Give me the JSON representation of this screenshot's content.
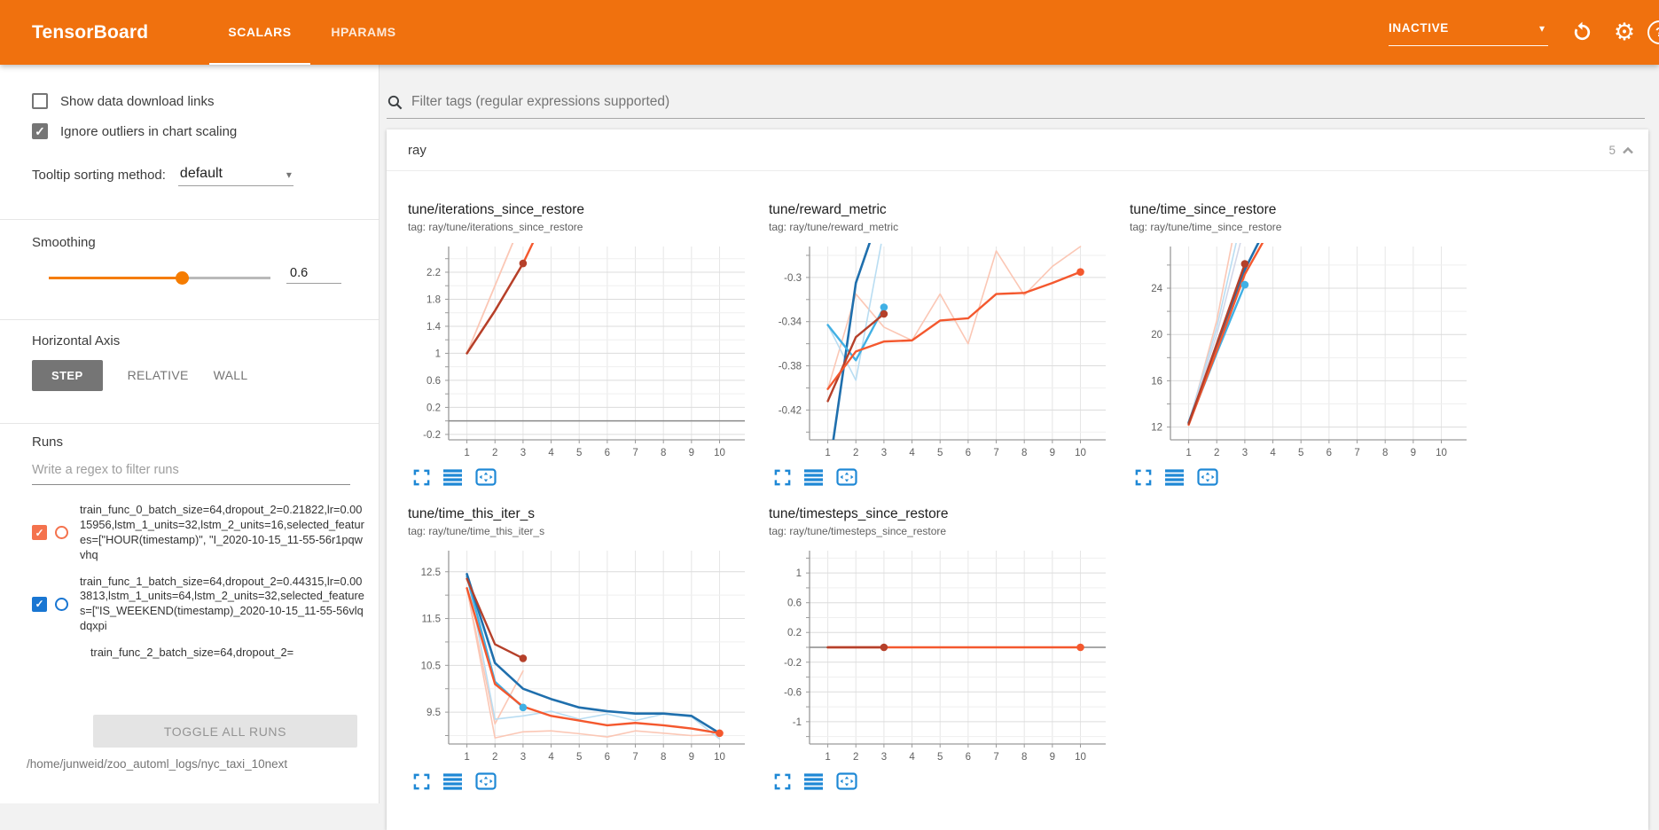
{
  "header": {
    "logo": "TensorBoard",
    "tabs": [
      {
        "label": "SCALARS",
        "active": true
      },
      {
        "label": "HPARAMS",
        "active": false
      }
    ],
    "status": {
      "label": "INACTIVE"
    }
  },
  "icons": {
    "caret_glyph": "▾",
    "gear_glyph": "⚙",
    "help_glyph": "?",
    "check_glyph": "✓",
    "search": "magnifier",
    "refresh": "circular-arrow",
    "settings": "gear",
    "collapse": "chevron-up",
    "expand_chart": "fullscreen-corners",
    "runs_selector": "horizontal-bars",
    "fit_domain": "boxed-arrows"
  },
  "colors": {
    "header_bar": "#f0710e",
    "accent_orange": "#f57c00",
    "run0_orange": "#f4724d",
    "run1_blue": "#1976d2",
    "chart_orange": "#f4582e",
    "chart_darkred": "#b5402a",
    "chart_blue": "#1f6fad",
    "chart_cyan": "#41b0e4",
    "icon_blue": "#1e88d5"
  },
  "sidebar": {
    "checkboxes": [
      {
        "label": "Show data download links",
        "checked": false
      },
      {
        "label": "Ignore outliers in chart scaling",
        "checked": true
      }
    ],
    "tooltip_sorting": {
      "label": "Tooltip sorting method:",
      "value": "default"
    },
    "smoothing": {
      "label": "Smoothing",
      "value": "0.6",
      "fraction": 0.6
    },
    "horizontal_axis": {
      "label": "Horizontal Axis",
      "options": [
        "STEP",
        "RELATIVE",
        "WALL"
      ],
      "active": "STEP"
    },
    "runs": {
      "label": "Runs",
      "filter_placeholder": "Write a regex to filter runs",
      "items": [
        {
          "name": "train_func_0_batch_size=64,dropout_2=0.21822,lr=0.0015956,lstm_1_units=32,lstm_2_units=16,selected_features=[\"HOUR(timestamp)\", \"I_2020-10-15_11-55-56r1pqwvhq",
          "checked": true,
          "color": "#f4724d",
          "partial": false
        },
        {
          "name": "train_func_1_batch_size=64,dropout_2=0.44315,lr=0.003813,lstm_1_units=64,lstm_2_units=32,selected_features=[\"IS_WEEKEND(timestamp)_2020-10-15_11-55-56vlqdqxpi",
          "checked": true,
          "color": "#1976d2",
          "partial": false
        },
        {
          "name": "train_func_2_batch_size=64,dropout_2=",
          "checked": true,
          "color": "#b5402a",
          "partial": true
        }
      ],
      "toggle_button": "TOGGLE ALL RUNS",
      "log_path": "/home/junweid/zoo_automl_logs/nyc_taxi_10next"
    }
  },
  "main": {
    "filter_placeholder": "Filter tags (regular expressions supported)",
    "section": {
      "name": "ray",
      "count": "5"
    }
  },
  "chart_data": {
    "note": "see charts array",
    "type": "line"
  },
  "charts": [
    {
      "title": "tune/iterations_since_restore",
      "tag": "tag: ray/tune/iterations_since_restore",
      "ylim": [
        -0.28,
        2.58
      ],
      "yticks": [
        2.2,
        1.8,
        1.4,
        1,
        0.6,
        0.2,
        -0.2
      ],
      "xticks": [
        1,
        2,
        3,
        4,
        5,
        6,
        7,
        8,
        9,
        10
      ],
      "zero": true,
      "series": [
        {
          "c": "#fbc7b5",
          "w": 1.8,
          "p": [
            [
              1,
              1
            ],
            [
              2,
              2
            ],
            [
              3,
              3
            ]
          ]
        },
        {
          "c": "#f4582e",
          "w": 2.4,
          "p": [
            [
              1,
              1
            ],
            [
              2,
              1.63
            ],
            [
              3,
              2.33
            ],
            [
              4,
              3.2
            ]
          ]
        },
        {
          "c": "#b5402a",
          "w": 2.4,
          "p": [
            [
              1,
              1
            ],
            [
              2,
              1.63
            ],
            [
              3,
              2.33
            ]
          ],
          "d": [
            3,
            2.33
          ]
        }
      ]
    },
    {
      "title": "tune/reward_metric",
      "tag": "tag: ray/tune/reward_metric",
      "ylim": [
        -0.447,
        -0.272
      ],
      "yticks": [
        -0.3,
        -0.34,
        -0.38,
        -0.42
      ],
      "xticks": [
        1,
        2,
        3,
        4,
        5,
        6,
        7,
        8,
        9,
        10
      ],
      "zero": false,
      "series": [
        {
          "c": "#fbc7b5",
          "w": 1.6,
          "p": [
            [
              1,
              -0.401
            ],
            [
              2,
              -0.315
            ],
            [
              3,
              -0.345
            ],
            [
              4,
              -0.357
            ],
            [
              5,
              -0.315
            ],
            [
              6,
              -0.36
            ],
            [
              7,
              -0.276
            ],
            [
              8,
              -0.316
            ],
            [
              9,
              -0.29
            ],
            [
              10,
              -0.272
            ]
          ]
        },
        {
          "c": "#b9ddf2",
          "w": 1.6,
          "p": [
            [
              1,
              -0.343
            ],
            [
              2,
              -0.393
            ],
            [
              2.9,
              -0.27
            ]
          ]
        },
        {
          "c": "#1f6fad",
          "w": 2.6,
          "p": [
            [
              1.18,
              -0.45
            ],
            [
              2,
              -0.305
            ],
            [
              2.5,
              -0.268
            ]
          ]
        },
        {
          "c": "#41b0e4",
          "w": 2.4,
          "p": [
            [
              1,
              -0.343
            ],
            [
              2,
              -0.375
            ],
            [
              3,
              -0.327
            ]
          ],
          "d": [
            3,
            -0.327
          ]
        },
        {
          "c": "#b5402a",
          "w": 2.4,
          "p": [
            [
              1,
              -0.412
            ],
            [
              2,
              -0.354
            ],
            [
              3,
              -0.333
            ]
          ],
          "d": [
            3,
            -0.333
          ]
        },
        {
          "c": "#f4582e",
          "w": 2.4,
          "p": [
            [
              1,
              -0.401
            ],
            [
              2,
              -0.367
            ],
            [
              3,
              -0.358
            ],
            [
              4,
              -0.357
            ],
            [
              5,
              -0.339
            ],
            [
              6,
              -0.337
            ],
            [
              7,
              -0.315
            ],
            [
              8,
              -0.314
            ],
            [
              9,
              -0.305
            ],
            [
              10,
              -0.295
            ]
          ],
          "d": [
            10,
            -0.295
          ]
        }
      ]
    },
    {
      "title": "tune/time_since_restore",
      "tag": "tag: ray/tune/time_since_restore",
      "ylim": [
        10.9,
        27.6
      ],
      "yticks": [
        24,
        20,
        16,
        12
      ],
      "xticks": [
        1,
        2,
        3,
        4,
        5,
        6,
        7,
        8,
        9,
        10
      ],
      "zero": false,
      "series": [
        {
          "c": "#fbc7b5",
          "w": 1.6,
          "p": [
            [
              1,
              12.2
            ],
            [
              2,
              21.2
            ],
            [
              2.55,
              28
            ]
          ]
        },
        {
          "c": "#b9ddf2",
          "w": 1.6,
          "p": [
            [
              1,
              12.4
            ],
            [
              2,
              20.6
            ],
            [
              2.7,
              28
            ]
          ]
        },
        {
          "c": "#d3d7e8",
          "w": 1.6,
          "p": [
            [
              1,
              12.3
            ],
            [
              2,
              20.0
            ],
            [
              2.85,
              28
            ]
          ]
        },
        {
          "c": "#41b0e4",
          "w": 2.4,
          "p": [
            [
              1,
              12.3
            ],
            [
              2,
              18.4
            ],
            [
              3,
              24.3
            ]
          ],
          "d": [
            3,
            24.3
          ]
        },
        {
          "c": "#1f6fad",
          "w": 2.6,
          "p": [
            [
              1,
              12.4
            ],
            [
              2,
              18.9
            ],
            [
              3,
              25.6
            ],
            [
              3.5,
              28
            ]
          ]
        },
        {
          "c": "#f4582e",
          "w": 2.4,
          "p": [
            [
              1,
              12.2
            ],
            [
              2,
              18.6
            ],
            [
              3,
              25.2
            ],
            [
              3.65,
              28
            ]
          ]
        },
        {
          "c": "#b5402a",
          "w": 2.4,
          "p": [
            [
              1,
              12.3
            ],
            [
              2,
              19.2
            ],
            [
              3,
              26.1
            ]
          ],
          "d": [
            3,
            26.1
          ]
        }
      ]
    },
    {
      "title": "tune/time_this_iter_s",
      "tag": "tag: ray/tune/time_this_iter_s",
      "ylim": [
        8.82,
        12.95
      ],
      "yticks": [
        12.5,
        11.5,
        10.5,
        9.5
      ],
      "xticks": [
        1,
        2,
        3,
        4,
        5,
        6,
        7,
        8,
        9,
        10
      ],
      "zero": false,
      "series": [
        {
          "c": "#fbc7b5",
          "w": 1.6,
          "p": [
            [
              1,
              12.15
            ],
            [
              2,
              8.95
            ],
            [
              3,
              9.08
            ],
            [
              4,
              9.1
            ],
            [
              5,
              9.04
            ],
            [
              6,
              8.97
            ],
            [
              7,
              9.1
            ],
            [
              8,
              9.05
            ],
            [
              9,
              9.0
            ],
            [
              10,
              9.02
            ]
          ]
        },
        {
          "c": "#fbc7b5",
          "w": 1.6,
          "p": [
            [
              1,
              12.15
            ],
            [
              2,
              9.25
            ],
            [
              3,
              10.38
            ]
          ]
        },
        {
          "c": "#b9ddf2",
          "w": 1.6,
          "p": [
            [
              1,
              12.45
            ],
            [
              2,
              9.35
            ],
            [
              3,
              9.42
            ],
            [
              4,
              9.52
            ],
            [
              5,
              9.35
            ],
            [
              6,
              9.46
            ],
            [
              7,
              9.32
            ],
            [
              8,
              9.46
            ],
            [
              9,
              9.4
            ],
            [
              10,
              8.93
            ]
          ]
        },
        {
          "c": "#41b0e4",
          "w": 2.4,
          "p": [
            [
              1,
              12.4
            ],
            [
              2,
              10.15
            ],
            [
              3,
              9.6
            ]
          ],
          "d": [
            3,
            9.6
          ]
        },
        {
          "c": "#1f6fad",
          "w": 2.6,
          "p": [
            [
              1,
              12.45
            ],
            [
              2,
              10.55
            ],
            [
              3,
              10.0
            ],
            [
              4,
              9.78
            ],
            [
              5,
              9.6
            ],
            [
              6,
              9.52
            ],
            [
              7,
              9.47
            ],
            [
              8,
              9.47
            ],
            [
              9,
              9.42
            ],
            [
              10,
              9.05
            ]
          ]
        },
        {
          "c": "#f4582e",
          "w": 2.4,
          "p": [
            [
              1,
              12.15
            ],
            [
              2,
              10.1
            ],
            [
              3,
              9.62
            ],
            [
              4,
              9.42
            ],
            [
              5,
              9.32
            ],
            [
              6,
              9.22
            ],
            [
              7,
              9.27
            ],
            [
              8,
              9.22
            ],
            [
              9,
              9.15
            ],
            [
              10,
              9.05
            ]
          ],
          "d": [
            10,
            9.05
          ]
        },
        {
          "c": "#b5402a",
          "w": 2.4,
          "p": [
            [
              1,
              12.35
            ],
            [
              2,
              10.95
            ],
            [
              3,
              10.65
            ]
          ],
          "d": [
            3,
            10.65
          ]
        }
      ]
    },
    {
      "title": "tune/timesteps_since_restore",
      "tag": "tag: ray/tune/timesteps_since_restore",
      "ylim": [
        -1.3,
        1.3
      ],
      "yticks": [
        1,
        0.6,
        0.2,
        -0.2,
        -0.6,
        -1
      ],
      "xticks": [
        1,
        2,
        3,
        4,
        5,
        6,
        7,
        8,
        9,
        10
      ],
      "zero": true,
      "series": [
        {
          "c": "#f4582e",
          "w": 2.6,
          "p": [
            [
              1,
              0
            ],
            [
              10,
              0
            ]
          ],
          "d": [
            10,
            0
          ]
        },
        {
          "c": "#b5402a",
          "w": 2.6,
          "p": [
            [
              1,
              0
            ],
            [
              3,
              0
            ]
          ],
          "d": [
            3,
            0
          ]
        }
      ]
    }
  ]
}
